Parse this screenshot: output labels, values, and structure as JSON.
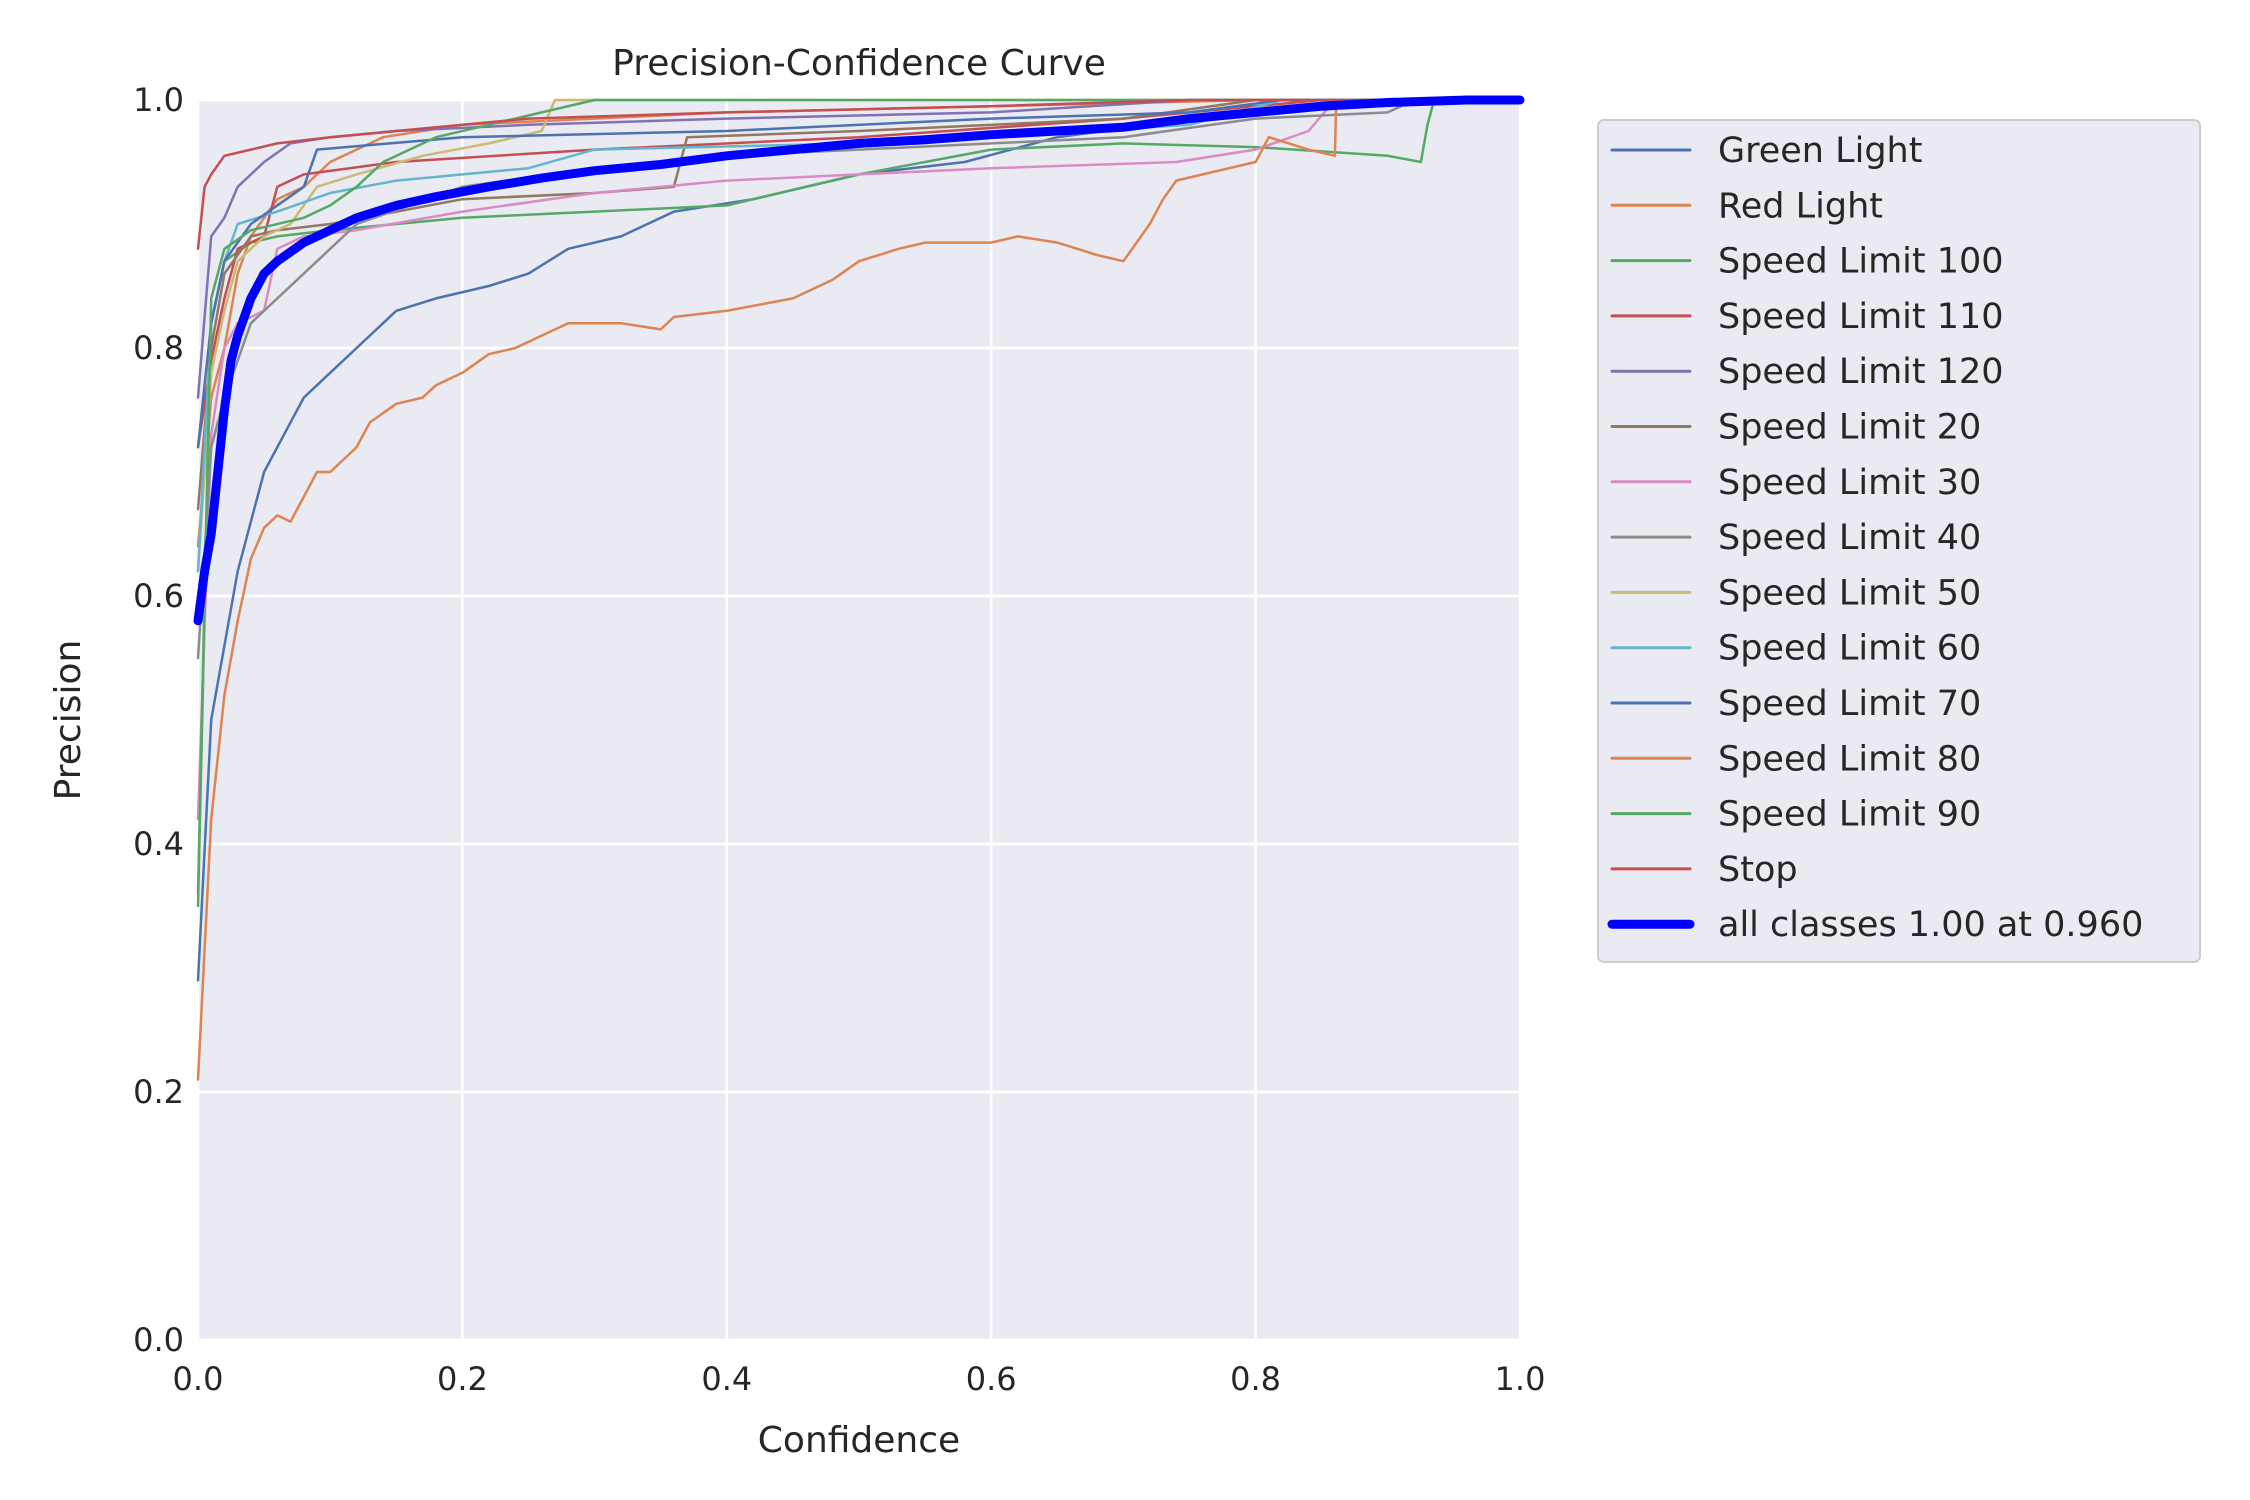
{
  "chart_data": {
    "type": "line",
    "title": "Precision-Confidence Curve",
    "xlabel": "Confidence",
    "ylabel": "Precision",
    "xlim": [
      0,
      1
    ],
    "ylim": [
      0,
      1
    ],
    "xticks": [
      "0.0",
      "0.2",
      "0.4",
      "0.6",
      "0.8",
      "1.0"
    ],
    "yticks": [
      "0.0",
      "0.2",
      "0.4",
      "0.6",
      "0.8",
      "1.0"
    ],
    "grid": true,
    "legend_position": "outside-right",
    "series": [
      {
        "name": "Green Light",
        "color": "#4c72b0",
        "points": [
          [
            0.0,
            0.29
          ],
          [
            0.01,
            0.5
          ],
          [
            0.02,
            0.56
          ],
          [
            0.03,
            0.62
          ],
          [
            0.04,
            0.66
          ],
          [
            0.05,
            0.7
          ],
          [
            0.06,
            0.72
          ],
          [
            0.07,
            0.74
          ],
          [
            0.08,
            0.76
          ],
          [
            0.09,
            0.77
          ],
          [
            0.1,
            0.78
          ],
          [
            0.12,
            0.8
          ],
          [
            0.15,
            0.83
          ],
          [
            0.18,
            0.84
          ],
          [
            0.22,
            0.85
          ],
          [
            0.25,
            0.86
          ],
          [
            0.28,
            0.88
          ],
          [
            0.32,
            0.89
          ],
          [
            0.36,
            0.91
          ],
          [
            0.42,
            0.92
          ],
          [
            0.5,
            0.94
          ],
          [
            0.58,
            0.95
          ],
          [
            0.65,
            0.97
          ],
          [
            0.72,
            0.98
          ],
          [
            0.8,
            0.99
          ],
          [
            0.9,
            1.0
          ],
          [
            1.0,
            1.0
          ]
        ]
      },
      {
        "name": "Red Light",
        "color": "#dd8452",
        "points": [
          [
            0.0,
            0.64
          ],
          [
            0.01,
            0.76
          ],
          [
            0.02,
            0.8
          ],
          [
            0.03,
            0.86
          ],
          [
            0.04,
            0.89
          ],
          [
            0.06,
            0.92
          ],
          [
            0.08,
            0.93
          ],
          [
            0.1,
            0.95
          ],
          [
            0.14,
            0.97
          ],
          [
            0.2,
            0.98
          ],
          [
            0.3,
            0.985
          ],
          [
            0.4,
            0.99
          ],
          [
            0.6,
            0.995
          ],
          [
            0.8,
            1.0
          ],
          [
            1.0,
            1.0
          ]
        ]
      },
      {
        "name": "Speed Limit 100",
        "color": "#55a868",
        "points": [
          [
            0.0,
            0.35
          ],
          [
            0.01,
            0.82
          ],
          [
            0.02,
            0.87
          ],
          [
            0.04,
            0.885
          ],
          [
            0.06,
            0.89
          ],
          [
            0.1,
            0.895
          ],
          [
            0.2,
            0.905
          ],
          [
            0.3,
            0.91
          ],
          [
            0.4,
            0.915
          ],
          [
            0.5,
            0.94
          ],
          [
            0.6,
            0.96
          ],
          [
            0.7,
            0.965
          ],
          [
            0.8,
            0.962
          ],
          [
            0.9,
            0.955
          ],
          [
            0.925,
            0.95
          ],
          [
            0.93,
            0.98
          ],
          [
            0.935,
            1.0
          ],
          [
            1.0,
            1.0
          ]
        ]
      },
      {
        "name": "Speed Limit 110",
        "color": "#c44e52",
        "points": [
          [
            0.0,
            0.72
          ],
          [
            0.01,
            0.79
          ],
          [
            0.02,
            0.84
          ],
          [
            0.03,
            0.88
          ],
          [
            0.05,
            0.89
          ],
          [
            0.06,
            0.93
          ],
          [
            0.08,
            0.94
          ],
          [
            0.15,
            0.95
          ],
          [
            0.3,
            0.96
          ],
          [
            0.5,
            0.97
          ],
          [
            0.7,
            0.985
          ],
          [
            0.85,
            1.0
          ],
          [
            1.0,
            1.0
          ]
        ]
      },
      {
        "name": "Speed Limit 120",
        "color": "#8172b3",
        "points": [
          [
            0.0,
            0.76
          ],
          [
            0.01,
            0.89
          ],
          [
            0.02,
            0.905
          ],
          [
            0.03,
            0.93
          ],
          [
            0.05,
            0.95
          ],
          [
            0.07,
            0.965
          ],
          [
            0.1,
            0.97
          ],
          [
            0.15,
            0.975
          ],
          [
            0.25,
            0.98
          ],
          [
            0.4,
            0.985
          ],
          [
            0.6,
            0.99
          ],
          [
            0.75,
            1.0
          ],
          [
            1.0,
            1.0
          ]
        ]
      },
      {
        "name": "Speed Limit 20",
        "color": "#937860",
        "points": [
          [
            0.0,
            0.67
          ],
          [
            0.01,
            0.8
          ],
          [
            0.02,
            0.86
          ],
          [
            0.04,
            0.89
          ],
          [
            0.06,
            0.895
          ],
          [
            0.1,
            0.9
          ],
          [
            0.15,
            0.91
          ],
          [
            0.2,
            0.92
          ],
          [
            0.3,
            0.925
          ],
          [
            0.36,
            0.93
          ],
          [
            0.37,
            0.97
          ],
          [
            0.5,
            0.975
          ],
          [
            0.7,
            0.985
          ],
          [
            0.8,
            1.0
          ],
          [
            1.0,
            1.0
          ]
        ]
      },
      {
        "name": "Speed Limit 30",
        "color": "#da8bc3",
        "points": [
          [
            0.0,
            0.42
          ],
          [
            0.01,
            0.73
          ],
          [
            0.02,
            0.8
          ],
          [
            0.03,
            0.82
          ],
          [
            0.05,
            0.83
          ],
          [
            0.06,
            0.88
          ],
          [
            0.08,
            0.89
          ],
          [
            0.12,
            0.895
          ],
          [
            0.2,
            0.91
          ],
          [
            0.3,
            0.925
          ],
          [
            0.4,
            0.935
          ],
          [
            0.5,
            0.94
          ],
          [
            0.6,
            0.945
          ],
          [
            0.74,
            0.95
          ],
          [
            0.8,
            0.96
          ],
          [
            0.84,
            0.975
          ],
          [
            0.86,
            1.0
          ],
          [
            1.0,
            1.0
          ]
        ]
      },
      {
        "name": "Speed Limit 40",
        "color": "#8c8c8c",
        "points": [
          [
            0.0,
            0.55
          ],
          [
            0.01,
            0.72
          ],
          [
            0.02,
            0.76
          ],
          [
            0.03,
            0.79
          ],
          [
            0.04,
            0.82
          ],
          [
            0.06,
            0.84
          ],
          [
            0.08,
            0.86
          ],
          [
            0.1,
            0.88
          ],
          [
            0.12,
            0.9
          ],
          [
            0.2,
            0.93
          ],
          [
            0.3,
            0.945
          ],
          [
            0.4,
            0.955
          ],
          [
            0.5,
            0.96
          ],
          [
            0.6,
            0.965
          ],
          [
            0.7,
            0.97
          ],
          [
            0.8,
            0.985
          ],
          [
            0.9,
            0.99
          ],
          [
            0.92,
            1.0
          ],
          [
            1.0,
            1.0
          ]
        ]
      },
      {
        "name": "Speed Limit 50",
        "color": "#ccb974",
        "points": [
          [
            0.0,
            0.62
          ],
          [
            0.01,
            0.78
          ],
          [
            0.02,
            0.83
          ],
          [
            0.03,
            0.87
          ],
          [
            0.05,
            0.89
          ],
          [
            0.07,
            0.9
          ],
          [
            0.09,
            0.93
          ],
          [
            0.12,
            0.94
          ],
          [
            0.17,
            0.955
          ],
          [
            0.22,
            0.965
          ],
          [
            0.26,
            0.975
          ],
          [
            0.27,
            1.0
          ],
          [
            1.0,
            1.0
          ]
        ]
      },
      {
        "name": "Speed Limit 60",
        "color": "#64b5cd",
        "points": [
          [
            0.0,
            0.62
          ],
          [
            0.01,
            0.82
          ],
          [
            0.02,
            0.87
          ],
          [
            0.03,
            0.9
          ],
          [
            0.06,
            0.91
          ],
          [
            0.1,
            0.925
          ],
          [
            0.15,
            0.935
          ],
          [
            0.25,
            0.945
          ],
          [
            0.3,
            0.96
          ],
          [
            0.5,
            0.965
          ],
          [
            0.6,
            0.97
          ],
          [
            0.75,
            0.98
          ],
          [
            0.82,
            1.0
          ],
          [
            1.0,
            1.0
          ]
        ]
      },
      {
        "name": "Speed Limit 70",
        "color": "#4c72b0",
        "points": [
          [
            0.0,
            0.72
          ],
          [
            0.01,
            0.82
          ],
          [
            0.02,
            0.87
          ],
          [
            0.04,
            0.9
          ],
          [
            0.08,
            0.93
          ],
          [
            0.09,
            0.96
          ],
          [
            0.2,
            0.97
          ],
          [
            0.4,
            0.975
          ],
          [
            0.6,
            0.985
          ],
          [
            0.75,
            0.99
          ],
          [
            0.82,
            1.0
          ],
          [
            1.0,
            1.0
          ]
        ]
      },
      {
        "name": "Speed Limit 80",
        "color": "#dd8452",
        "points": [
          [
            0.0,
            0.21
          ],
          [
            0.01,
            0.42
          ],
          [
            0.02,
            0.52
          ],
          [
            0.03,
            0.58
          ],
          [
            0.04,
            0.63
          ],
          [
            0.05,
            0.655
          ],
          [
            0.06,
            0.665
          ],
          [
            0.07,
            0.66
          ],
          [
            0.08,
            0.68
          ],
          [
            0.09,
            0.7
          ],
          [
            0.1,
            0.7
          ],
          [
            0.11,
            0.71
          ],
          [
            0.12,
            0.72
          ],
          [
            0.13,
            0.74
          ],
          [
            0.15,
            0.755
          ],
          [
            0.17,
            0.76
          ],
          [
            0.18,
            0.77
          ],
          [
            0.2,
            0.78
          ],
          [
            0.22,
            0.795
          ],
          [
            0.24,
            0.8
          ],
          [
            0.26,
            0.81
          ],
          [
            0.28,
            0.82
          ],
          [
            0.32,
            0.82
          ],
          [
            0.35,
            0.815
          ],
          [
            0.36,
            0.825
          ],
          [
            0.4,
            0.83
          ],
          [
            0.45,
            0.84
          ],
          [
            0.48,
            0.855
          ],
          [
            0.5,
            0.87
          ],
          [
            0.53,
            0.88
          ],
          [
            0.55,
            0.885
          ],
          [
            0.6,
            0.885
          ],
          [
            0.62,
            0.89
          ],
          [
            0.65,
            0.885
          ],
          [
            0.68,
            0.875
          ],
          [
            0.7,
            0.87
          ],
          [
            0.71,
            0.885
          ],
          [
            0.72,
            0.9
          ],
          [
            0.73,
            0.92
          ],
          [
            0.74,
            0.935
          ],
          [
            0.76,
            0.94
          ],
          [
            0.8,
            0.95
          ],
          [
            0.81,
            0.97
          ],
          [
            0.84,
            0.96
          ],
          [
            0.86,
            0.955
          ],
          [
            0.861,
            1.0
          ],
          [
            1.0,
            1.0
          ]
        ]
      },
      {
        "name": "Speed Limit 90",
        "color": "#55a868",
        "points": [
          [
            0.0,
            0.36
          ],
          [
            0.01,
            0.84
          ],
          [
            0.02,
            0.88
          ],
          [
            0.04,
            0.895
          ],
          [
            0.08,
            0.905
          ],
          [
            0.1,
            0.915
          ],
          [
            0.12,
            0.93
          ],
          [
            0.14,
            0.95
          ],
          [
            0.18,
            0.97
          ],
          [
            0.22,
            0.98
          ],
          [
            0.26,
            0.99
          ],
          [
            0.3,
            1.0
          ],
          [
            1.0,
            1.0
          ]
        ]
      },
      {
        "name": "Stop",
        "color": "#c44e52",
        "points": [
          [
            0.0,
            0.88
          ],
          [
            0.005,
            0.93
          ],
          [
            0.01,
            0.94
          ],
          [
            0.02,
            0.955
          ],
          [
            0.04,
            0.96
          ],
          [
            0.06,
            0.965
          ],
          [
            0.1,
            0.97
          ],
          [
            0.15,
            0.975
          ],
          [
            0.25,
            0.985
          ],
          [
            0.4,
            0.99
          ],
          [
            0.6,
            0.995
          ],
          [
            0.75,
            1.0
          ],
          [
            1.0,
            1.0
          ]
        ]
      },
      {
        "name": "all classes 1.00 at 0.960",
        "color": "#0000ff",
        "bold": true,
        "points": [
          [
            0.0,
            0.58
          ],
          [
            0.005,
            0.62
          ],
          [
            0.01,
            0.65
          ],
          [
            0.015,
            0.7
          ],
          [
            0.02,
            0.75
          ],
          [
            0.025,
            0.79
          ],
          [
            0.03,
            0.81
          ],
          [
            0.04,
            0.84
          ],
          [
            0.05,
            0.86
          ],
          [
            0.06,
            0.87
          ],
          [
            0.08,
            0.885
          ],
          [
            0.1,
            0.895
          ],
          [
            0.12,
            0.905
          ],
          [
            0.15,
            0.915
          ],
          [
            0.18,
            0.922
          ],
          [
            0.22,
            0.93
          ],
          [
            0.26,
            0.937
          ],
          [
            0.3,
            0.943
          ],
          [
            0.35,
            0.948
          ],
          [
            0.4,
            0.955
          ],
          [
            0.45,
            0.96
          ],
          [
            0.5,
            0.965
          ],
          [
            0.55,
            0.968
          ],
          [
            0.6,
            0.972
          ],
          [
            0.65,
            0.975
          ],
          [
            0.7,
            0.978
          ],
          [
            0.75,
            0.985
          ],
          [
            0.8,
            0.99
          ],
          [
            0.85,
            0.995
          ],
          [
            0.9,
            0.998
          ],
          [
            0.96,
            1.0
          ],
          [
            1.0,
            1.0
          ]
        ]
      }
    ]
  }
}
